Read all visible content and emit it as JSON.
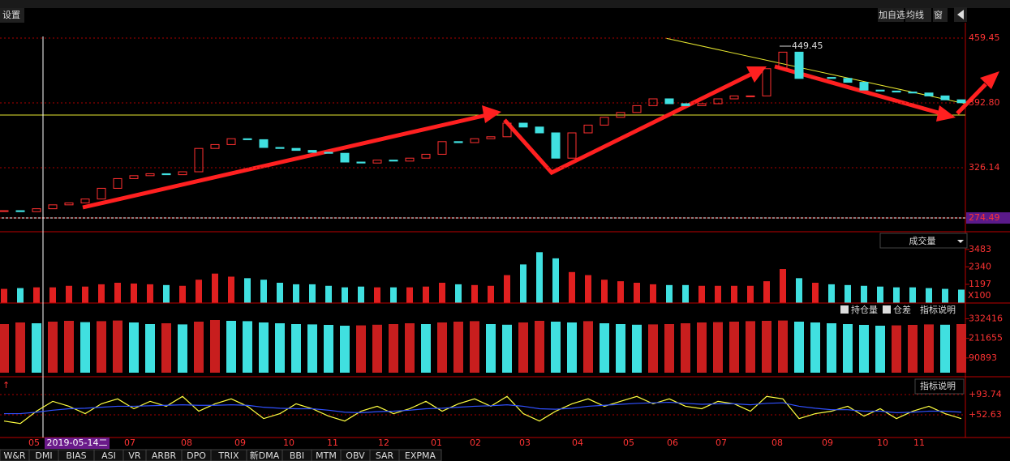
{
  "toolbar": {
    "settings": "设置",
    "buttons": [
      "加自选",
      "均线",
      "窗"
    ]
  },
  "price_panel": {
    "type": "candlestick",
    "ylim": [
      261.2,
      475.3
    ],
    "yticks": [
      {
        "value": 459.45,
        "label": "459.45"
      },
      {
        "value": 392.8,
        "label": "392.80"
      },
      {
        "value": 326.14,
        "label": "326.14"
      },
      {
        "value": 274.49,
        "label": "274.49"
      }
    ],
    "high_label": "449.45",
    "closes": [
      282,
      281,
      284,
      288,
      290,
      294,
      305,
      315,
      318,
      320,
      319,
      322,
      346,
      350,
      356,
      355,
      347,
      346,
      344,
      342,
      341,
      332,
      331,
      334,
      333,
      336,
      340,
      353,
      352,
      356,
      358,
      372,
      368,
      362,
      336,
      362,
      370,
      378,
      383,
      390,
      397,
      392,
      390,
      392,
      397,
      400,
      400,
      428,
      445,
      418,
      419,
      418,
      414,
      406,
      405,
      404,
      403,
      400,
      396,
      393
    ]
  },
  "volume_panel": {
    "type": "bar",
    "title": "成交量",
    "ylim": [
      0,
      3900
    ],
    "yticks": [
      3483,
      2340,
      1197
    ],
    "unit": "X100",
    "values": [
      900,
      950,
      1000,
      1000,
      1100,
      1050,
      1200,
      1300,
      1250,
      1200,
      1150,
      1100,
      1500,
      1900,
      1700,
      1600,
      1500,
      1300,
      1200,
      1200,
      1100,
      1000,
      1050,
      1000,
      1000,
      1000,
      1050,
      1300,
      1200,
      1150,
      1100,
      1800,
      2500,
      3300,
      2900,
      2000,
      1800,
      1500,
      1400,
      1300,
      1200,
      1150,
      1150,
      1100,
      1100,
      1100,
      1100,
      1400,
      2200,
      1600,
      1300,
      1200,
      1150,
      1100,
      1050,
      1000,
      1000,
      950,
      900,
      850
    ]
  },
  "oi_panel": {
    "type": "bar",
    "options": [
      "持仓量",
      "仓差"
    ],
    "help": "指标说明",
    "ylim": [
      0,
      350000
    ],
    "yticks": [
      332416,
      211655,
      90893
    ],
    "values": [
      300000,
      310000,
      305000,
      315000,
      320000,
      312000,
      318000,
      322000,
      310000,
      300000,
      305000,
      298000,
      315000,
      325000,
      320000,
      318000,
      310000,
      305000,
      300000,
      298000,
      295000,
      290000,
      292000,
      296000,
      300000,
      305000,
      300000,
      310000,
      315000,
      318000,
      300000,
      296000,
      310000,
      320000,
      315000,
      310000,
      318000,
      305000,
      300000,
      296000,
      298000,
      300000,
      305000,
      310000,
      312000,
      315000,
      318000,
      320000,
      322000,
      315000,
      310000,
      305000,
      300000,
      295000,
      290000,
      292000,
      295000,
      298000,
      296000,
      300000
    ]
  },
  "osc_panel": {
    "type": "line",
    "help": "指标说明",
    "ylim": [
      6.6,
      121.7
    ],
    "yticks": [
      {
        "value": 93.74,
        "label": "+93.74"
      },
      {
        "value": 52.63,
        "label": "+52.63"
      }
    ],
    "series": [
      {
        "color": "#ffff40",
        "values": [
          40,
          35,
          60,
          80,
          70,
          55,
          75,
          85,
          65,
          80,
          70,
          90,
          60,
          75,
          85,
          70,
          45,
          55,
          75,
          65,
          50,
          40,
          60,
          70,
          55,
          65,
          80,
          60,
          75,
          85,
          70,
          90,
          55,
          40,
          60,
          75,
          85,
          70,
          80,
          90,
          75,
          85,
          70,
          65,
          80,
          75,
          60,
          90,
          85,
          45,
          55,
          60,
          70,
          50,
          65,
          45,
          60,
          70,
          55,
          45
        ]
      },
      {
        "color": "#3050ff",
        "values": [
          55,
          55,
          58,
          62,
          65,
          66,
          68,
          70,
          70,
          71,
          72,
          73,
          72,
          72,
          73,
          72,
          68,
          66,
          65,
          65,
          62,
          58,
          57,
          59,
          60,
          62,
          65,
          66,
          68,
          70,
          71,
          73,
          70,
          65,
          64,
          66,
          70,
          72,
          74,
          76,
          77,
          78,
          76,
          74,
          75,
          75,
          73,
          76,
          77,
          70,
          66,
          63,
          63,
          60,
          60,
          57,
          58,
          60,
          60,
          58
        ]
      }
    ]
  },
  "months": [
    "05",
    "2019-05-14二",
    "07",
    "08",
    "09",
    "10",
    "11",
    "12",
    "01",
    "02",
    "03",
    "04",
    "05",
    "06",
    "07",
    "08",
    "09",
    "10",
    "11"
  ],
  "tabs": [
    "W&R",
    "DMI",
    "BIAS",
    "ASI",
    "VR",
    "ARBR",
    "DPO",
    "TRIX",
    "新DMA",
    "BBI",
    "MTM",
    "OBV",
    "SAR",
    "EXPMA"
  ]
}
